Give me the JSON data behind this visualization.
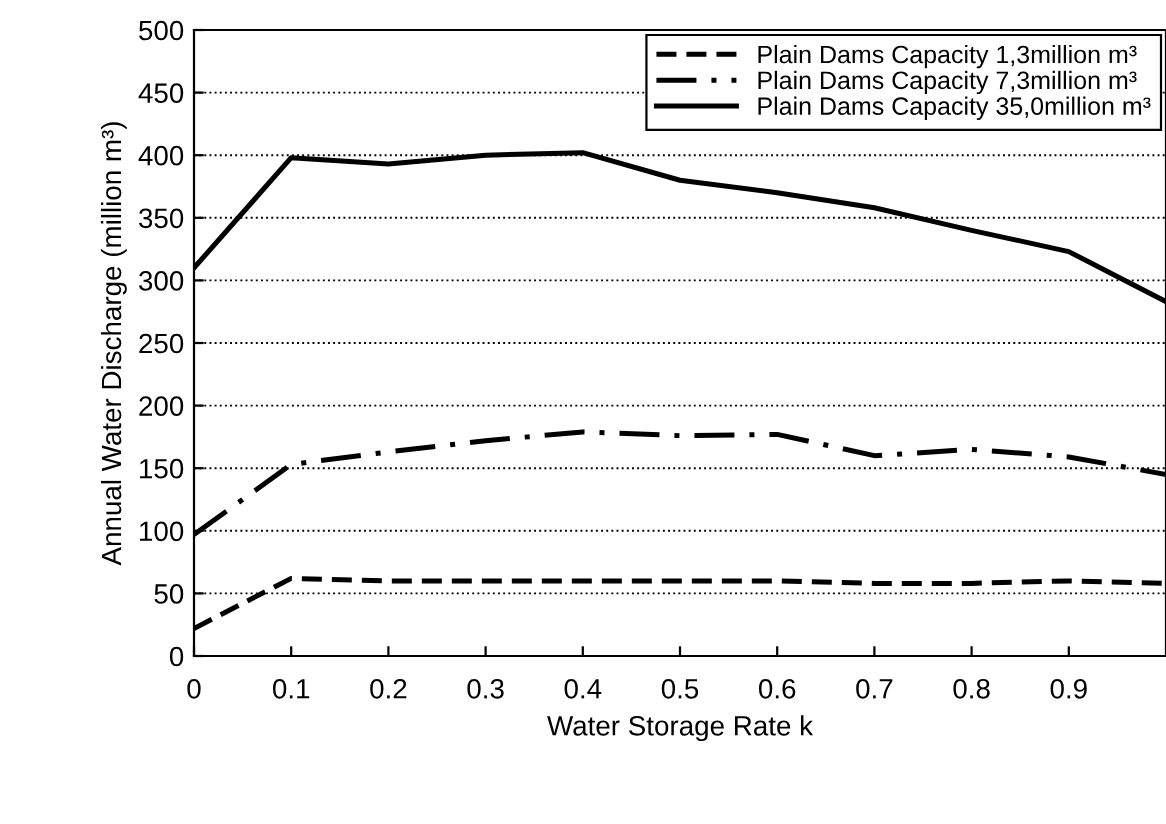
{
  "chart_data": {
    "type": "line",
    "xlabel": "Water Storage Rate k",
    "ylabel": "Annual Water Discharge (million m³)",
    "x": [
      0,
      0.1,
      0.2,
      0.3,
      0.4,
      0.5,
      0.6,
      0.7,
      0.8,
      0.9,
      1.0
    ],
    "series": [
      {
        "name": "Plain Dams Capacity 1,3million m³",
        "color": "#000000",
        "line_style": "dashed",
        "values": [
          22,
          62,
          60,
          60,
          60,
          60,
          60,
          58,
          58,
          60,
          58
        ]
      },
      {
        "name": "Plain Dams Capacity 7,3million m³",
        "color": "#000000",
        "line_style": "dashdot",
        "values": [
          97,
          153,
          163,
          172,
          179,
          176,
          177,
          160,
          165,
          159,
          145
        ]
      },
      {
        "name": "Plain Dams Capacity 35,0million m³",
        "color": "#000000",
        "line_style": "solid",
        "values": [
          310,
          398,
          393,
          400,
          402,
          380,
          370,
          358,
          340,
          323,
          283
        ]
      }
    ],
    "xlim": [
      0,
      1.0
    ],
    "xticks": [
      0,
      0.1,
      0.2,
      0.3,
      0.4,
      0.5,
      0.6,
      0.7,
      0.8,
      0.9
    ],
    "ylim": [
      0,
      500
    ],
    "yticks": [
      0,
      50,
      100,
      150,
      200,
      250,
      300,
      350,
      400,
      450,
      500
    ],
    "grid": "y",
    "legend": "top right",
    "marker": "none"
  }
}
